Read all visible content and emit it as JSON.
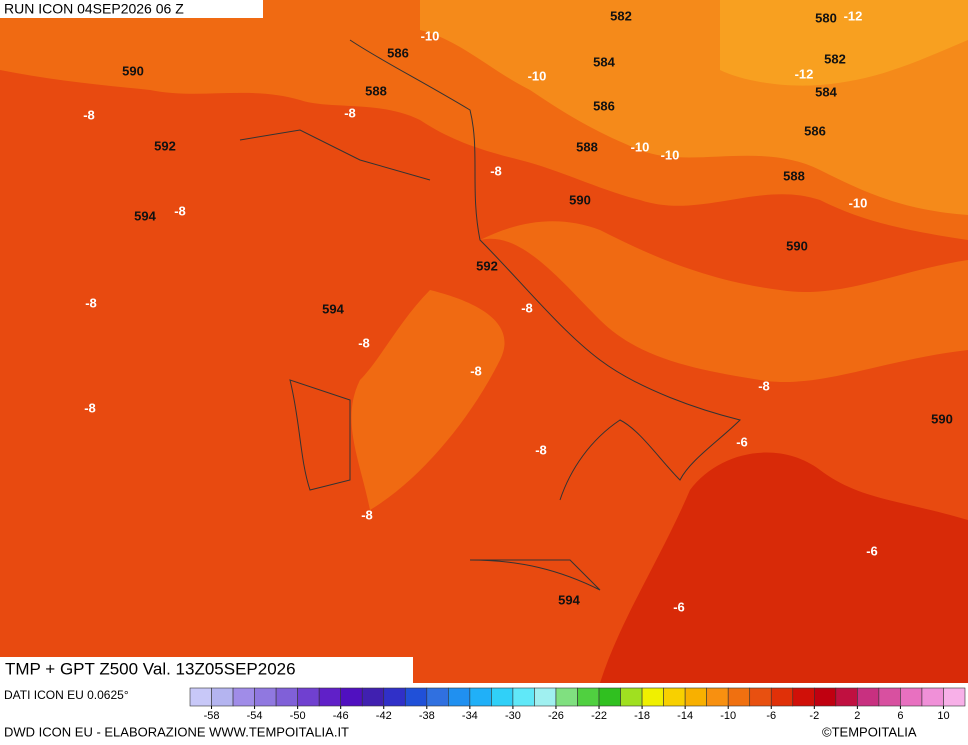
{
  "header": {
    "run": "RUN ICON 04SEP2026 06 Z"
  },
  "map": {
    "title": "TMP + GPT Z500 Val. 13Z05SEP2026",
    "contour_labels": [
      582,
      580,
      -12,
      -10,
      586,
      584,
      582,
      -12,
      590,
      -10,
      588,
      584,
      -8,
      -8,
      586,
      586,
      592,
      588,
      -10,
      -10,
      -8,
      588,
      594,
      -8,
      590,
      -10,
      590,
      592,
      -8,
      594,
      -8,
      -8,
      -8,
      -8,
      -8,
      590,
      -6,
      -8,
      -8,
      -6,
      594,
      -6
    ]
  },
  "colorbar": {
    "range": [
      -60,
      12
    ],
    "ticks": [
      -58,
      -54,
      -50,
      -46,
      -42,
      -38,
      -34,
      -30,
      -26,
      -22,
      -18,
      -14,
      -10,
      -6,
      -2,
      2,
      6,
      10
    ],
    "colors": [
      "#c8c8f8",
      "#b4b4f0",
      "#a08ce8",
      "#9078e0",
      "#8060d8",
      "#7040d0",
      "#6020c8",
      "#5010c0",
      "#4020b0",
      "#3030c8",
      "#2050d8",
      "#3070e0",
      "#2090f0",
      "#20b0f8",
      "#30d0f8",
      "#60e8f8",
      "#a0f0f0",
      "#80e080",
      "#50d040",
      "#30c020",
      "#a0e020",
      "#f0f000",
      "#f8d000",
      "#f8b000",
      "#f89010",
      "#f07010",
      "#e85010",
      "#e03008",
      "#d01008",
      "#c00010",
      "#c01040",
      "#c83080",
      "#d850a0",
      "#e870c0",
      "#f090d8",
      "#f8b0e8"
    ]
  },
  "footer": {
    "data_source": "DATI ICON EU 0.0625°",
    "credit": "DWD ICON EU - ELABORAZIONE WWW.TEMPOITALIA.IT",
    "copyright": "©TEMPOITALIA"
  }
}
